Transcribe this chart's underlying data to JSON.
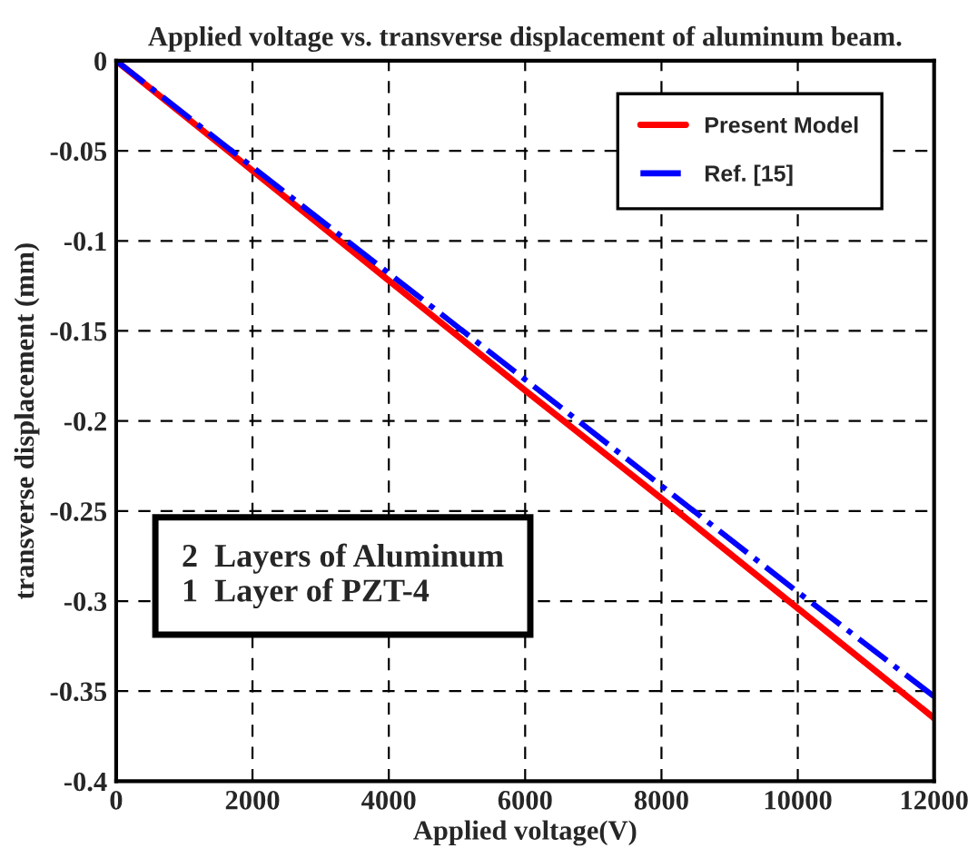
{
  "chart_data": {
    "type": "line",
    "title": "Applied voltage vs. transverse displacement of aluminum beam.",
    "xlabel": "Applied voltage(V)",
    "ylabel": "transverse displacement (mm)",
    "x": [
      0,
      2000,
      4000,
      6000,
      8000,
      10000,
      12000
    ],
    "series": [
      {
        "name": "Present Model",
        "color": "#ff0000",
        "line_style": "solid",
        "values": [
          0,
          -0.061,
          -0.122,
          -0.183,
          -0.243,
          -0.304,
          -0.365
        ]
      },
      {
        "name": "Ref. [15]",
        "color": "#0000ff",
        "line_style": "dashdot",
        "values": [
          0,
          -0.059,
          -0.118,
          -0.177,
          -0.236,
          -0.295,
          -0.353
        ]
      }
    ],
    "xlim": [
      0,
      12000
    ],
    "xticks": [
      0,
      2000,
      4000,
      6000,
      8000,
      10000,
      12000
    ],
    "ylim": [
      -0.4,
      0
    ],
    "yticks": [
      -0.4,
      -0.35,
      -0.3,
      -0.25,
      -0.2,
      -0.15,
      -0.1,
      -0.05,
      0
    ],
    "grid": true,
    "legend": "top right",
    "annotations": [
      "2  Layers of Aluminum\n1  Layer of PZT-4"
    ]
  }
}
